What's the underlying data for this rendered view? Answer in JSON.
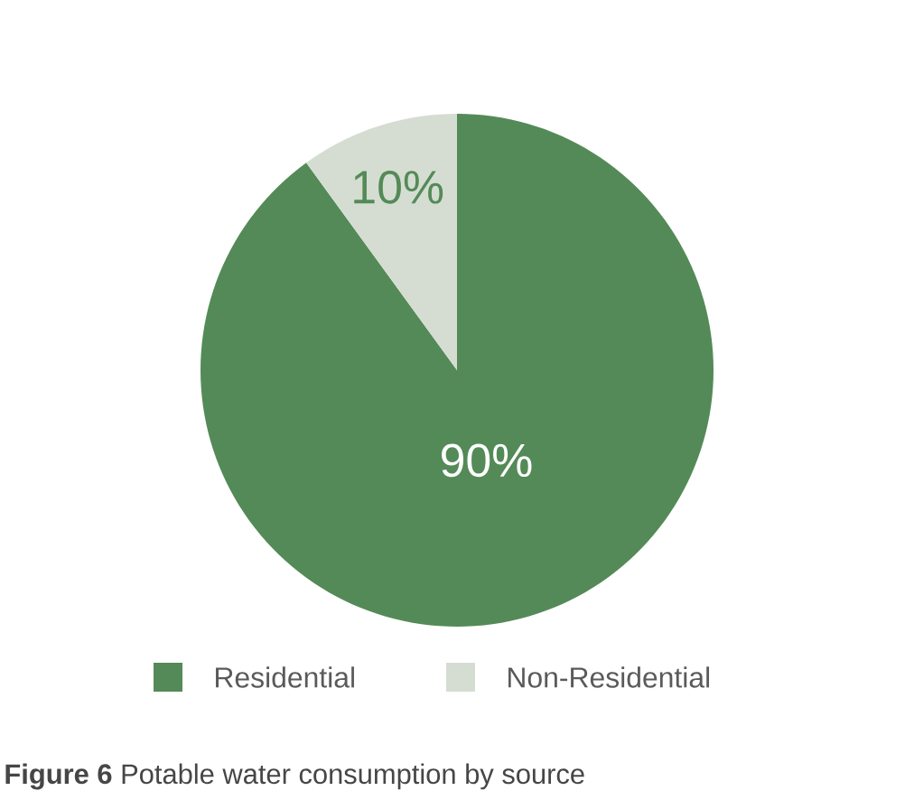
{
  "chart_data": {
    "type": "pie",
    "categories": [
      "Residential",
      "Non-Residential"
    ],
    "values": [
      90,
      10
    ],
    "value_labels": [
      "90%",
      "10%"
    ],
    "colors": [
      "#548a57",
      "#d5ddd2"
    ],
    "legend": "bottom",
    "annotations": [
      "**Figure 6** Potable water consumption by source"
    ]
  }
}
